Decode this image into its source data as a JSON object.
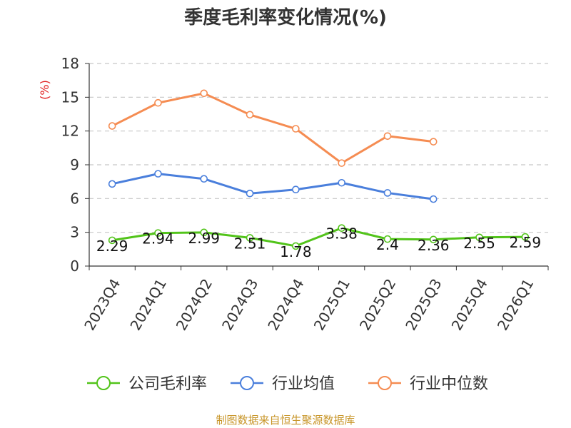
{
  "chart_data": {
    "type": "line",
    "title": "季度毛利率变化情况(%)",
    "ylabel": "(%)",
    "xlabel": "",
    "ylim": [
      0,
      18
    ],
    "yticks": [
      0,
      3,
      6,
      9,
      12,
      15,
      18
    ],
    "grid": "horizontal-dashed",
    "legend_position": "bottom",
    "categories": [
      "2023Q4",
      "2024Q1",
      "2024Q2",
      "2024Q3",
      "2024Q4",
      "2025Q1",
      "2025Q2",
      "2025Q3",
      "2025Q4",
      "2026Q1"
    ],
    "series": [
      {
        "name": "公司毛利率",
        "color": "#52c41a",
        "show_labels": true,
        "values": [
          2.29,
          2.94,
          2.99,
          2.51,
          1.78,
          3.38,
          2.4,
          2.36,
          2.55,
          2.59
        ]
      },
      {
        "name": "行业均值",
        "color": "#4a7fdc",
        "show_labels": false,
        "values": [
          7.3,
          8.2,
          7.75,
          6.45,
          6.8,
          7.4,
          6.5,
          5.95,
          null,
          null
        ]
      },
      {
        "name": "行业中位数",
        "color": "#f58c52",
        "show_labels": false,
        "values": [
          12.45,
          14.5,
          15.35,
          13.45,
          12.2,
          9.15,
          11.55,
          11.05,
          null,
          null
        ]
      }
    ],
    "labels": {
      "公司毛利率": [
        "2.29",
        "2.94",
        "2.99",
        "2.51",
        "1.78",
        "3.38",
        "2.4",
        "2.36",
        "2.55",
        "2.59"
      ]
    }
  },
  "source_text": "制图数据来自恒生聚源数据库"
}
